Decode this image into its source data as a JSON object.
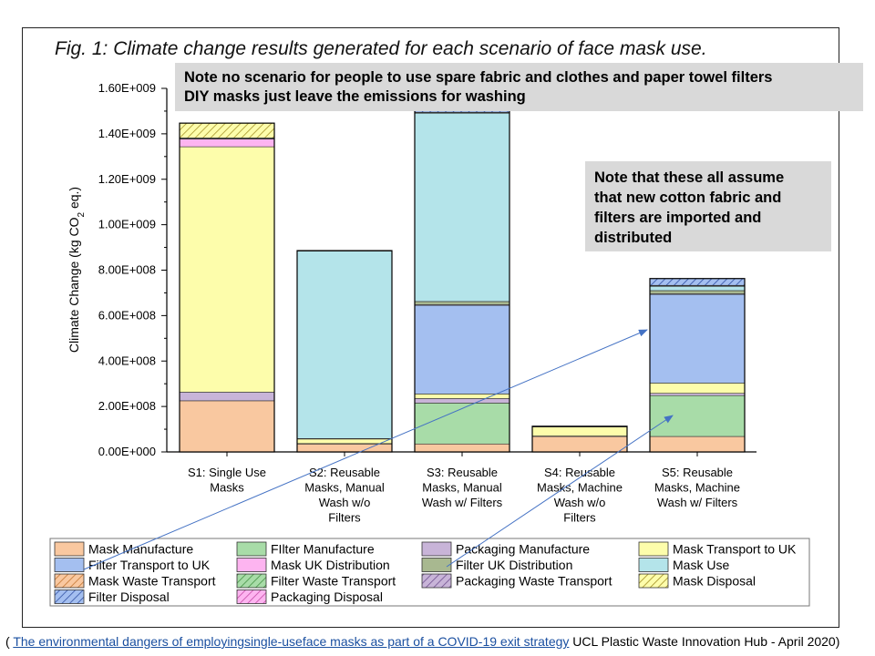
{
  "chart_data": {
    "type": "bar",
    "stacked": true,
    "title": "Fig. 1: Climate change results generated for each scenario of face mask use.",
    "ylabel": "Climate Change (kg CO2 eq.)",
    "ylim": [
      0,
      1600000000
    ],
    "yticks": [
      {
        "value": 0,
        "label": "0.00E+000"
      },
      {
        "value": 200000000,
        "label": "2.00E+008"
      },
      {
        "value": 400000000,
        "label": "4.00E+008"
      },
      {
        "value": 600000000,
        "label": "6.00E+008"
      },
      {
        "value": 800000000,
        "label": "8.00E+008"
      },
      {
        "value": 1000000000,
        "label": "1.00E+009"
      },
      {
        "value": 1200000000,
        "label": "1.20E+009"
      },
      {
        "value": 1400000000,
        "label": "1.40E+009"
      },
      {
        "value": 1600000000,
        "label": "1.60E+009"
      }
    ],
    "categories": [
      [
        "S1: Single Use",
        "Masks"
      ],
      [
        "S2: Reusable",
        "Masks, Manual",
        "Wash w/o",
        "Filters"
      ],
      [
        "S3: Reusable",
        "Masks, Manual",
        "Wash w/ Filters"
      ],
      [
        "S4: Reusable",
        "Masks, Machine",
        "Wash w/o",
        "Filters"
      ],
      [
        "S5: Reusable",
        "Masks, Machine",
        "Wash w/ Filters"
      ]
    ],
    "series": [
      {
        "name": "Mask Manufacture",
        "color": "#f9c8a0",
        "values": [
          225000000,
          35000000,
          35000000,
          68000000,
          68000000
        ]
      },
      {
        "name": "FIlter Manufacture",
        "color": "#a8dca8",
        "values": [
          0,
          0,
          180000000,
          0,
          180000000
        ]
      },
      {
        "name": "Packaging Manufacture",
        "color": "#c8b4d8",
        "values": [
          38000000,
          2000000,
          20000000,
          2000000,
          10000000
        ]
      },
      {
        "name": "Mask Transport to UK",
        "color": "#fdfdab",
        "values": [
          1080000000,
          20000000,
          20000000,
          40000000,
          45000000
        ]
      },
      {
        "name": "Filter Transport to UK",
        "color": "#a4bff0",
        "values": [
          0,
          0,
          390000000,
          0,
          390000000
        ]
      },
      {
        "name": "Mask UK Distribution",
        "color": "#fdb4f0",
        "values": [
          35000000,
          2000000,
          3000000,
          2000000,
          3000000
        ]
      },
      {
        "name": "Filter UK Distribution",
        "color": "#a8b890",
        "values": [
          0,
          0,
          14000000,
          0,
          14000000
        ]
      },
      {
        "name": "Mask Use",
        "color": "#b4e4ea",
        "values": [
          0,
          826000000,
          830000000,
          0,
          20000000
        ]
      },
      {
        "name": "Mask Waste Transport",
        "color": "#f9c8a0",
        "pattern": "orange",
        "values": [
          1000000,
          1000000,
          1000000,
          1000000,
          1000000
        ]
      },
      {
        "name": "Filter Waste Transport",
        "color": "#a8dca8",
        "pattern": "green",
        "values": [
          0,
          0,
          2000000,
          0,
          2000000
        ]
      },
      {
        "name": "Packaging Waste Transport",
        "color": "#c8b4d8",
        "pattern": "purple",
        "values": [
          3000000,
          0,
          0,
          0,
          0
        ]
      },
      {
        "name": "Mask Disposal",
        "color": "#fdfdab",
        "pattern": "yellow",
        "values": [
          65000000,
          0,
          0,
          0,
          0
        ]
      },
      {
        "name": "Filter Disposal",
        "color": "#a4bff0",
        "pattern": "blue",
        "values": [
          0,
          0,
          10000000,
          0,
          30000000
        ]
      },
      {
        "name": "Packaging Disposal",
        "color": "#fdb4f0",
        "pattern": "pink",
        "values": [
          0,
          0,
          0,
          0,
          0
        ]
      }
    ],
    "legend": "bottom",
    "grid": false
  },
  "annotations": {
    "top_note": [
      "Note no scenario for people to use spare fabric and clothes and paper towel filters",
      "DIY masks just leave the emissions for washing"
    ],
    "right_note": [
      "Note that these all assume",
      "that new cotton fabric and",
      "filters are imported and",
      "distributed"
    ]
  },
  "caption": {
    "open": "( ",
    "link_text": "The environmental dangers of employingsingle-useface masks as part of a COVID-19 exit strategy",
    "suffix": " UCL Plastic Waste Innovation Hub - April 2020)"
  }
}
